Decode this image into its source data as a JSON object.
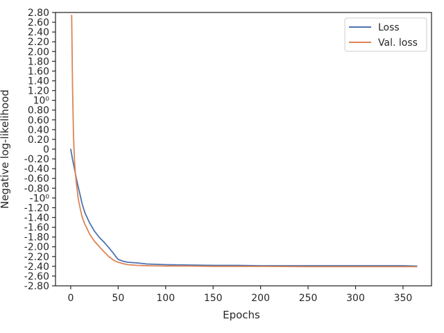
{
  "chart_data": {
    "type": "line",
    "title": "",
    "xlabel": "Epochs",
    "ylabel": "Negative log-likelihood",
    "xlim": [
      -16,
      380
    ],
    "x_ticks": [
      0,
      50,
      100,
      150,
      200,
      250,
      300,
      350
    ],
    "y_scale": "symlog",
    "y_tick_labels": [
      "2.80",
      "2.60",
      "2.40",
      "2.20",
      "2.00",
      "1.80",
      "1.60",
      "1.40",
      "1.20",
      "10⁰",
      "0.80",
      "0.60",
      "0.40",
      "0.20",
      "0",
      "-0.20",
      "-0.40",
      "-0.60",
      "-0.80",
      "-10⁰",
      "-1.20",
      "-1.40",
      "-1.60",
      "-1.80",
      "-2.00",
      "-2.20",
      "-2.40",
      "-2.60",
      "-2.80"
    ],
    "grid": false,
    "legend": {
      "position": "top-right",
      "entries": [
        "Loss",
        "Val. loss"
      ]
    },
    "colors": {
      "Loss": "#4c72b0",
      "Val. loss": "#dd8452"
    },
    "series": [
      {
        "name": "Loss",
        "x": [
          0,
          2,
          4,
          6,
          8,
          10,
          12,
          15,
          20,
          25,
          30,
          35,
          40,
          45,
          48,
          50,
          55,
          60,
          70,
          80,
          100,
          125,
          150,
          175,
          200,
          250,
          300,
          350,
          365
        ],
        "y": [
          0.0,
          -0.18,
          -0.34,
          -0.5,
          -0.64,
          -0.78,
          -0.92,
          -1.06,
          -1.22,
          -1.36,
          -1.48,
          -1.58,
          -1.7,
          -1.84,
          -1.94,
          -2.0,
          -2.05,
          -2.08,
          -2.1,
          -2.13,
          -2.15,
          -2.16,
          -2.17,
          -2.17,
          -2.18,
          -2.18,
          -2.18,
          -2.18,
          -2.19
        ]
      },
      {
        "name": "Val. loss",
        "x": [
          1,
          2,
          3,
          4,
          5,
          6,
          8,
          10,
          12,
          15,
          20,
          25,
          30,
          35,
          40,
          45,
          48,
          50,
          55,
          60,
          70,
          80,
          100,
          125,
          150,
          175,
          200,
          250,
          300,
          350,
          365
        ],
        "y": [
          2.75,
          1.0,
          0.2,
          -0.2,
          -0.42,
          -0.58,
          -0.84,
          -1.0,
          -1.12,
          -1.24,
          -1.42,
          -1.56,
          -1.68,
          -1.8,
          -1.92,
          -2.02,
          -2.06,
          -2.08,
          -2.12,
          -2.15,
          -2.17,
          -2.18,
          -2.19,
          -2.19,
          -2.2,
          -2.2,
          -2.2,
          -2.21,
          -2.21,
          -2.21,
          -2.21
        ]
      }
    ]
  }
}
